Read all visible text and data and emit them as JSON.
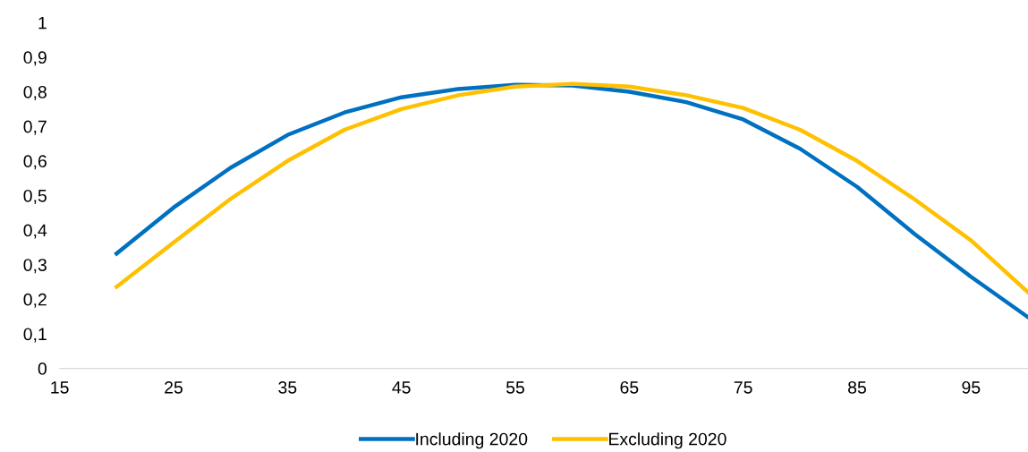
{
  "chart_data": {
    "type": "line",
    "x": [
      20,
      25,
      30,
      35,
      40,
      45,
      50,
      55,
      60,
      65,
      70,
      75,
      80,
      85,
      90,
      95,
      100
    ],
    "series": [
      {
        "name": "Including 2020",
        "color": "#0070c0",
        "values": [
          0.332,
          0.465,
          0.58,
          0.675,
          0.74,
          0.784,
          0.808,
          0.82,
          0.818,
          0.8,
          0.77,
          0.72,
          0.635,
          0.525,
          0.39,
          0.265,
          0.148
        ]
      },
      {
        "name": "Excluding 2020",
        "color": "#ffc000",
        "values": [
          0.236,
          0.364,
          0.49,
          0.6,
          0.69,
          0.75,
          0.79,
          0.815,
          0.823,
          0.815,
          0.79,
          0.753,
          0.69,
          0.6,
          0.49,
          0.37,
          0.22
        ]
      }
    ],
    "xlim": [
      15,
      100
    ],
    "xticks": [
      15,
      25,
      35,
      45,
      55,
      65,
      75,
      85,
      95
    ],
    "ylim": [
      0,
      1
    ],
    "yticks": [
      0,
      {
        "value": 0.1,
        "label": "0,1"
      },
      {
        "value": 0.2,
        "label": "0,2"
      },
      {
        "value": 0.3,
        "label": "0,3"
      },
      {
        "value": 0.4,
        "label": "0,4"
      },
      {
        "value": 0.5,
        "label": "0,5"
      },
      {
        "value": 0.6,
        "label": "0,6"
      },
      {
        "value": 0.7,
        "label": "0,7"
      },
      {
        "value": 0.8,
        "label": "0,8"
      },
      {
        "value": 0.9,
        "label": "0,9"
      },
      1
    ],
    "grid": false,
    "legend": "bottom",
    "marker": "none",
    "line_style": "solid"
  }
}
